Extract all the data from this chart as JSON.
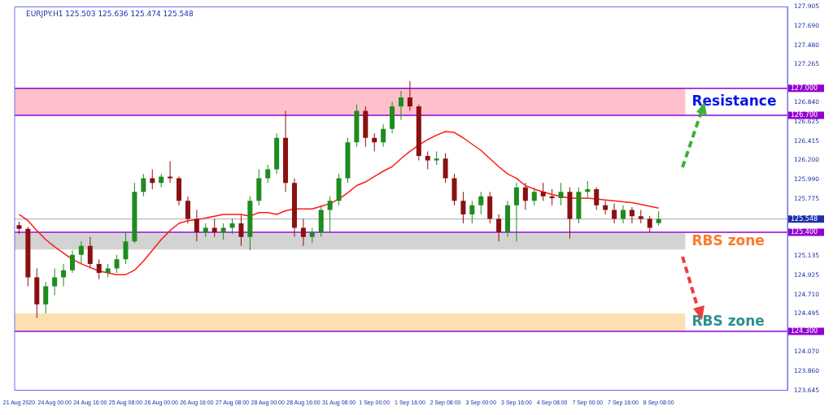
{
  "chart_data": {
    "type": "candlestick",
    "title": "EURJPY.H1 125.503 125.636 125.474 125.548",
    "categories": [
      "21 Aug 2020",
      null,
      null,
      null,
      "24 Aug 00:00",
      null,
      null,
      null,
      "24 Aug 16:00",
      null,
      null,
      null,
      "25 Aug 08:00",
      null,
      null,
      null,
      "26 Aug 00:00",
      null,
      null,
      null,
      "26 Aug 16:00",
      null,
      null,
      null,
      "27 Aug 08:00",
      null,
      null,
      null,
      "28 Aug 00:00",
      null,
      null,
      null,
      "28 Aug 16:00",
      null,
      null,
      null,
      "31 Aug 08:00",
      null,
      null,
      null,
      "1 Sep 00:00",
      null,
      null,
      null,
      "1 Sep 16:00",
      null,
      null,
      null,
      "2 Sep 08:00",
      null,
      null,
      null,
      "3 Sep 00:00",
      null,
      null,
      null,
      "3 Sep 16:00",
      null,
      null,
      null,
      "4 Sep 08:00",
      null,
      null,
      null,
      "7 Sep 00:00",
      null,
      null,
      null,
      "7 Sep 16:00",
      null,
      null,
      null,
      "8 Sep 08:00",
      null,
      null,
      null,
      null,
      null,
      null,
      null,
      null,
      null,
      null,
      null,
      null,
      null,
      null
    ],
    "ohlc": [
      [
        125.48,
        125.52,
        125.38,
        125.44
      ],
      [
        125.44,
        125.46,
        124.8,
        124.9
      ],
      [
        124.9,
        125.0,
        124.45,
        124.6
      ],
      [
        124.6,
        124.85,
        124.5,
        124.8
      ],
      [
        124.8,
        125.0,
        124.7,
        124.9
      ],
      [
        124.9,
        125.05,
        124.8,
        124.98
      ],
      [
        124.98,
        125.2,
        124.95,
        125.15
      ],
      [
        125.15,
        125.3,
        125.05,
        125.25
      ],
      [
        125.25,
        125.35,
        125.0,
        125.05
      ],
      [
        125.05,
        125.1,
        124.88,
        124.95
      ],
      [
        124.95,
        125.05,
        124.9,
        125.0
      ],
      [
        125.0,
        125.15,
        124.95,
        125.1
      ],
      [
        125.1,
        125.4,
        125.05,
        125.3
      ],
      [
        125.3,
        125.95,
        125.28,
        125.85
      ],
      [
        125.85,
        126.05,
        125.8,
        126.0
      ],
      [
        126.0,
        126.1,
        125.88,
        125.95
      ],
      [
        125.95,
        126.05,
        125.9,
        126.02
      ],
      [
        126.02,
        126.19,
        125.95,
        126.0
      ],
      [
        126.0,
        126.02,
        125.7,
        125.75
      ],
      [
        125.75,
        125.8,
        125.5,
        125.55
      ],
      [
        125.55,
        125.65,
        125.3,
        125.4
      ],
      [
        125.4,
        125.5,
        125.35,
        125.45
      ],
      [
        125.45,
        125.55,
        125.35,
        125.4
      ],
      [
        125.4,
        125.5,
        125.32,
        125.45
      ],
      [
        125.45,
        125.55,
        125.38,
        125.5
      ],
      [
        125.5,
        125.6,
        125.25,
        125.35
      ],
      [
        125.35,
        125.8,
        125.2,
        125.75
      ],
      [
        125.75,
        126.1,
        125.7,
        126.0
      ],
      [
        126.0,
        126.15,
        125.95,
        126.1
      ],
      [
        126.1,
        126.5,
        126.05,
        126.45
      ],
      [
        126.45,
        126.75,
        125.85,
        125.95
      ],
      [
        125.95,
        126.0,
        125.35,
        125.45
      ],
      [
        125.45,
        125.55,
        125.25,
        125.35
      ],
      [
        125.35,
        125.45,
        125.28,
        125.4
      ],
      [
        125.4,
        125.7,
        125.35,
        125.65
      ],
      [
        125.65,
        125.8,
        125.4,
        125.75
      ],
      [
        125.75,
        126.05,
        125.7,
        126.0
      ],
      [
        126.0,
        126.45,
        125.95,
        126.4
      ],
      [
        126.4,
        126.82,
        126.35,
        126.75
      ],
      [
        126.75,
        126.8,
        126.35,
        126.45
      ],
      [
        126.45,
        126.5,
        126.3,
        126.4
      ],
      [
        126.4,
        126.6,
        126.35,
        126.55
      ],
      [
        126.55,
        126.85,
        126.5,
        126.8
      ],
      [
        126.8,
        126.97,
        126.65,
        126.9
      ],
      [
        126.9,
        127.08,
        126.75,
        126.8
      ],
      [
        126.8,
        126.82,
        126.2,
        126.25
      ],
      [
        126.25,
        126.3,
        126.1,
        126.2
      ],
      [
        126.2,
        126.3,
        126.15,
        126.22
      ],
      [
        126.22,
        126.28,
        125.95,
        126.0
      ],
      [
        126.0,
        126.05,
        125.7,
        125.75
      ],
      [
        125.75,
        125.85,
        125.5,
        125.6
      ],
      [
        125.6,
        125.75,
        125.5,
        125.7
      ],
      [
        125.7,
        125.85,
        125.6,
        125.8
      ],
      [
        125.8,
        125.85,
        125.5,
        125.55
      ],
      [
        125.55,
        125.6,
        125.3,
        125.4
      ],
      [
        125.4,
        125.75,
        125.35,
        125.7
      ],
      [
        125.7,
        125.95,
        125.3,
        125.9
      ],
      [
        125.9,
        125.95,
        125.65,
        125.75
      ],
      [
        125.75,
        125.9,
        125.7,
        125.85
      ],
      [
        125.85,
        125.95,
        125.75,
        125.8
      ],
      [
        125.8,
        125.88,
        125.7,
        125.78
      ],
      [
        125.78,
        125.95,
        125.7,
        125.85
      ],
      [
        125.85,
        125.9,
        125.33,
        125.55
      ],
      [
        125.55,
        125.9,
        125.5,
        125.85
      ],
      [
        125.85,
        125.97,
        125.78,
        125.88
      ],
      [
        125.88,
        125.9,
        125.65,
        125.7
      ],
      [
        125.7,
        125.75,
        125.6,
        125.65
      ],
      [
        125.65,
        125.72,
        125.5,
        125.55
      ],
      [
        125.55,
        125.7,
        125.5,
        125.65
      ],
      [
        125.65,
        125.68,
        125.5,
        125.58
      ],
      [
        125.58,
        125.65,
        125.5,
        125.55
      ],
      [
        125.55,
        125.58,
        125.4,
        125.45
      ],
      [
        125.503,
        125.636,
        125.474,
        125.548
      ],
      null,
      null,
      null,
      null,
      null,
      null,
      null,
      null,
      null,
      null,
      null,
      null,
      null,
      null
    ],
    "colors": [
      "#8b1010",
      "#8b1010",
      "#8b1010",
      "#1e8c1e",
      "#1e8c1e",
      "#1e8c1e",
      "#1e8c1e",
      "#1e8c1e",
      "#8b1010",
      "#8b1010",
      "#1e8c1e",
      "#1e8c1e",
      "#1e8c1e",
      "#1e8c1e",
      "#1e8c1e",
      "#8b1010",
      "#1e8c1e",
      "#8b1010",
      "#8b1010",
      "#8b1010",
      "#8b1010",
      "#1e8c1e",
      "#8b1010",
      "#1e8c1e",
      "#1e8c1e",
      "#8b1010",
      "#1e8c1e",
      "#1e8c1e",
      "#1e8c1e",
      "#1e8c1e",
      "#8b1010",
      "#8b1010",
      "#8b1010",
      "#1e8c1e",
      "#1e8c1e",
      "#1e8c1e",
      "#1e8c1e",
      "#1e8c1e",
      "#1e8c1e",
      "#8b1010",
      "#8b1010",
      "#1e8c1e",
      "#1e8c1e",
      "#1e8c1e",
      "#8b1010",
      "#8b1010",
      "#8b1010",
      "#1e8c1e",
      "#8b1010",
      "#8b1010",
      "#8b1010",
      "#1e8c1e",
      "#1e8c1e",
      "#8b1010",
      "#8b1010",
      "#1e8c1e",
      "#1e8c1e",
      "#8b1010",
      "#1e8c1e",
      "#8b1010",
      "#8b1010",
      "#1e8c1e",
      "#8b1010",
      "#1e8c1e",
      "#1e8c1e",
      "#8b1010",
      "#8b1010",
      "#8b1010",
      "#1e8c1e",
      "#8b1010",
      "#8b1010",
      "#8b1010",
      "#1e8c1e",
      null,
      null,
      null,
      null,
      null,
      null,
      null,
      null,
      null,
      null,
      null,
      null,
      null,
      null
    ],
    "series": [
      {
        "type": "line",
        "color": "#ff1a1a",
        "values": [
          125.6,
          125.53,
          125.42,
          125.32,
          125.24,
          125.17,
          125.1,
          125.05,
          125.01,
          124.97,
          124.95,
          124.93,
          124.93,
          124.98,
          125.08,
          125.2,
          125.32,
          125.42,
          125.5,
          125.53,
          125.54,
          125.56,
          125.58,
          125.6,
          125.6,
          125.6,
          125.58,
          125.62,
          125.62,
          125.6,
          125.64,
          125.66,
          125.66,
          125.66,
          125.69,
          125.72,
          125.77,
          125.84,
          125.92,
          125.96,
          126.02,
          126.08,
          126.13,
          126.22,
          126.3,
          126.37,
          126.43,
          126.48,
          126.52,
          126.51,
          126.45,
          126.38,
          126.31,
          126.22,
          126.13,
          126.05,
          126.0,
          125.92,
          125.88,
          125.85,
          125.82,
          125.8,
          125.78,
          125.78,
          125.78,
          125.77,
          125.76,
          125.75,
          125.74,
          125.73,
          125.71,
          125.69,
          125.67,
          null,
          null,
          null,
          null,
          null,
          null,
          null,
          null,
          null,
          null,
          null,
          null,
          null,
          null
        ]
      }
    ],
    "ylim": [
      123.645,
      127.905
    ],
    "yticks": [
      {
        "value": 127.905,
        "label": "127.905"
      },
      {
        "value": 127.69,
        "label": "127.690"
      },
      {
        "value": 127.48,
        "label": "127.480"
      },
      {
        "value": 127.265,
        "label": "127.265"
      },
      {
        "value": 126.84,
        "label": "126.840"
      },
      {
        "value": 126.625,
        "label": "126.625"
      },
      {
        "value": 126.415,
        "label": "126.415"
      },
      {
        "value": 126.2,
        "label": "126.200"
      },
      {
        "value": 125.99,
        "label": "125.990"
      },
      {
        "value": 125.775,
        "label": "125.775"
      },
      {
        "value": 125.135,
        "label": "125.135"
      },
      {
        "value": 124.925,
        "label": "124.925"
      },
      {
        "value": 124.71,
        "label": "124.710"
      },
      {
        "value": 124.495,
        "label": "124.495"
      },
      {
        "value": 124.07,
        "label": "124.070"
      },
      {
        "value": 123.86,
        "label": "123.860"
      },
      {
        "value": 123.645,
        "label": "123.645"
      }
    ],
    "ref_lines": [
      {
        "axis": "y",
        "value": 127.0,
        "label": "127.000",
        "color": "#9400d3"
      },
      {
        "axis": "y",
        "value": 126.7,
        "label": "126.700",
        "color": "#9400d3"
      },
      {
        "axis": "y",
        "value": 125.4,
        "label": "125.400",
        "color": "#9400d3"
      },
      {
        "axis": "y",
        "value": 124.3,
        "label": "124.300",
        "color": "#9400d3"
      },
      {
        "axis": "y",
        "value": 125.548,
        "label": "125.548",
        "color": "#a9a9a9"
      }
    ],
    "bands": [
      {
        "axis": "y",
        "from": 126.7,
        "to": 127.0,
        "label": "Resistance",
        "color": "#ffc0cb"
      },
      {
        "axis": "y",
        "from": 125.21,
        "to": 125.39,
        "label": "RBS zone",
        "color": "#d3d3d3"
      },
      {
        "axis": "y",
        "from": 124.31,
        "to": 124.5,
        "label": "RBS zone",
        "color": "#fde0b2"
      }
    ],
    "grid": false,
    "legend": false
  }
}
